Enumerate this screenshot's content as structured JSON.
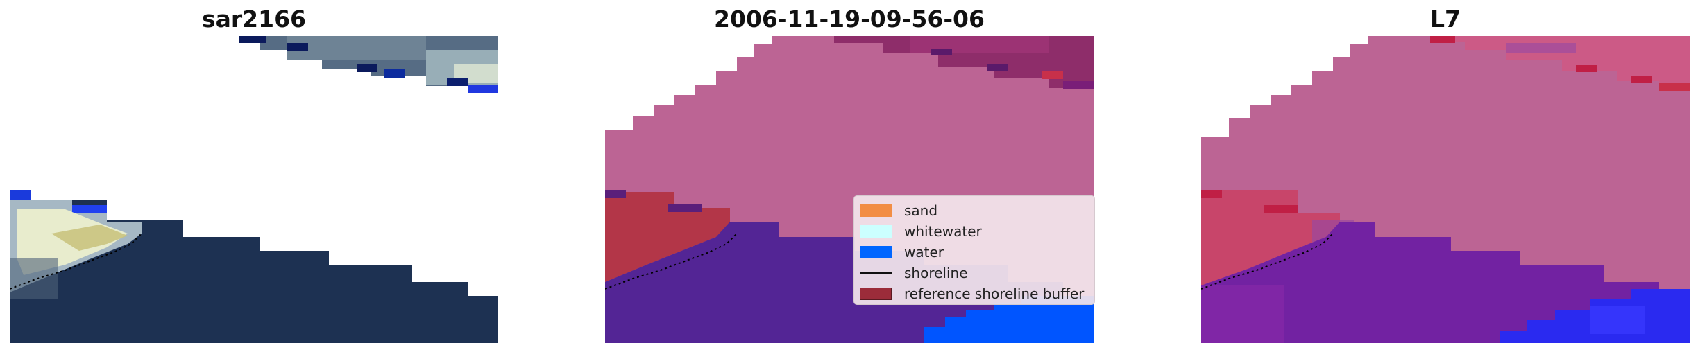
{
  "panels": [
    {
      "title": "sar2166"
    },
    {
      "title": "2006-11-19-09-56-06"
    },
    {
      "title": "L7"
    }
  ],
  "legend": {
    "items": [
      {
        "label": "sand",
        "kind": "patch",
        "color": "#f28d44"
      },
      {
        "label": "whitewater",
        "kind": "patch",
        "color": "#ccffff"
      },
      {
        "label": "water",
        "kind": "patch",
        "color": "#0066ff"
      },
      {
        "label": "shoreline",
        "kind": "line",
        "color": "#111111"
      },
      {
        "label": "reference shoreline buffer",
        "kind": "patch",
        "color": "#9b2c3a"
      }
    ]
  },
  "colors": {
    "sar_water": "#1d3152",
    "rgb_top": "#5a6f86",
    "class_pink": "#bc6494",
    "class_purple": "#532595",
    "class_red": "#b33648",
    "class_blue": "#0055ff",
    "l7_purple": "#7222a2"
  }
}
